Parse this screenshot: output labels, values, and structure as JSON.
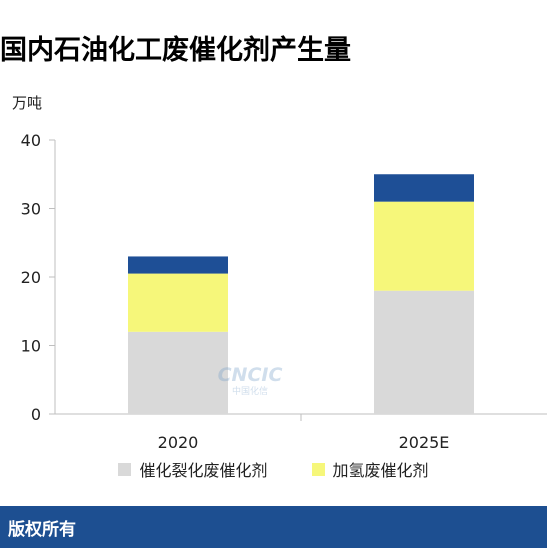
{
  "chart_data": {
    "type": "bar",
    "stacked": true,
    "title": "国内石油化工废催化剂产生量",
    "ylabel": "万吨",
    "categories": [
      "2020",
      "2025E"
    ],
    "series": [
      {
        "name": "催化裂化废催化剂",
        "values": [
          12,
          18
        ],
        "color": "#d9d9d9"
      },
      {
        "name": "加氢废催化剂",
        "values": [
          8.5,
          13
        ],
        "color": "#f6f77a"
      },
      {
        "name": "",
        "values": [
          2.5,
          4
        ],
        "color": "#1e4f96"
      }
    ],
    "ylim": [
      0,
      40
    ],
    "yticks": [
      0,
      10,
      20,
      30,
      40
    ],
    "legend_position": "bottom",
    "grid": false
  },
  "watermark": {
    "main": "CNCIC",
    "sub": "中国化信"
  },
  "footer": {
    "text": "版权所有"
  }
}
